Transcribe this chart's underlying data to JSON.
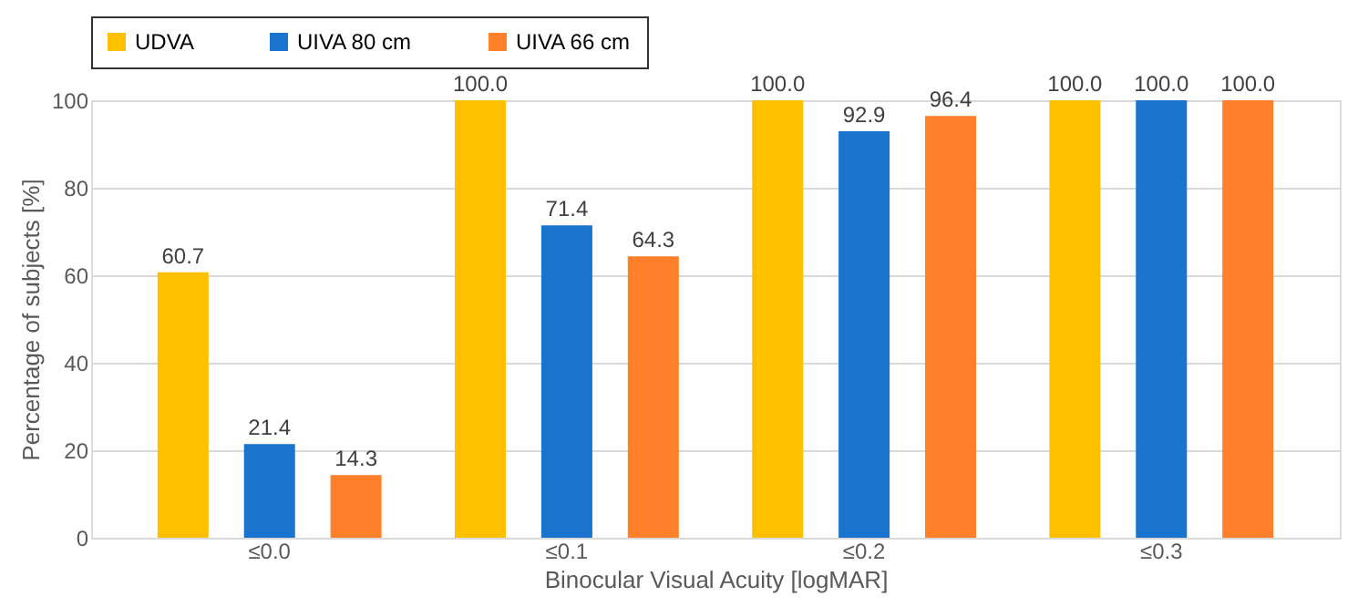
{
  "chart_data": {
    "type": "bar",
    "xlabel": "Binocular Visual Acuity [logMAR]",
    "ylabel": "Percentage of subjects [%]",
    "categories": [
      "≤0.0",
      "≤0.1",
      "≤0.2",
      "≤0.3"
    ],
    "series": [
      {
        "name": "UDVA",
        "color": "#ffc000",
        "values": [
          60.7,
          100.0,
          100.0,
          100.0
        ],
        "value_labels": [
          "60.7",
          "100.0",
          "100.0",
          "100.0"
        ]
      },
      {
        "name": "UIVA 80 cm",
        "color": "#1a73cc",
        "values": [
          21.4,
          71.4,
          92.9,
          100.0
        ],
        "value_labels": [
          "21.4",
          "71.4",
          "92.9",
          "100.0"
        ]
      },
      {
        "name": "UIVA 66 cm",
        "color": "#ff7f2a",
        "values": [
          14.3,
          64.3,
          96.4,
          100.0
        ],
        "value_labels": [
          "14.3",
          "64.3",
          "96.4",
          "100.0"
        ]
      }
    ],
    "ylim": [
      0,
      100
    ],
    "yticks": [
      0,
      20,
      40,
      60,
      80,
      100
    ],
    "grid": "y",
    "legend": "top"
  }
}
